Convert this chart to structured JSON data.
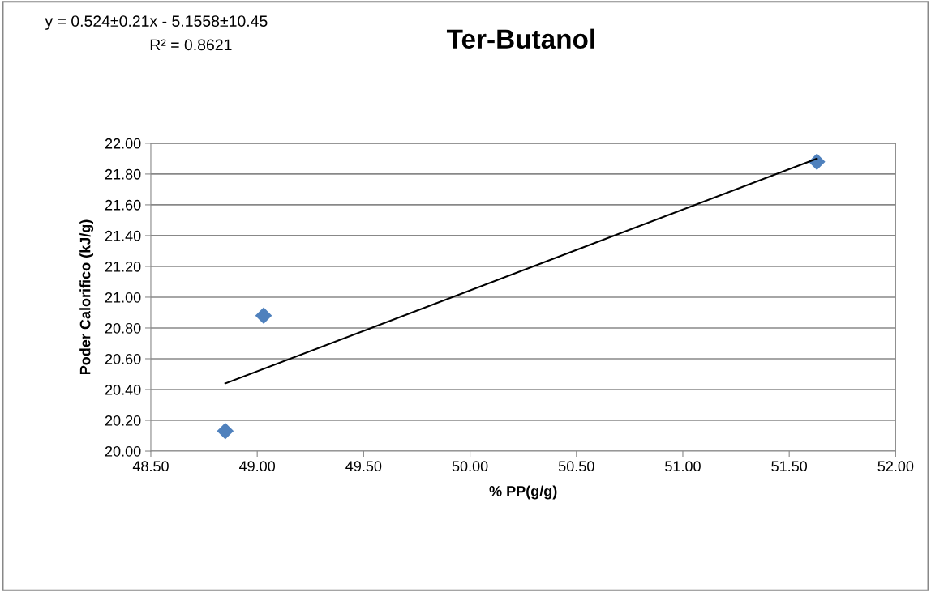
{
  "chart_data": {
    "type": "scatter",
    "title": "Ter-Butanol",
    "xlabel": "% PP(g/g)",
    "ylabel": "Poder Calorifico (kJ/g)",
    "annotations": [
      "y = 0.524±0.21x - 5.1558±10.45",
      "R² = 0.8621"
    ],
    "x": [
      48.85,
      49.03,
      51.63
    ],
    "series": [
      {
        "color": "#4f81bd",
        "marker": "diamond",
        "values": [
          20.13,
          20.88,
          21.88
        ]
      },
      {
        "type": "line",
        "color": "#000000",
        "marker": "none",
        "x": [
          48.85,
          51.63
        ],
        "values": [
          20.44,
          21.9
        ]
      }
    ],
    "xlim": [
      48.5,
      52.0
    ],
    "xticks": [
      {
        "value": 48.5,
        "label": "48.50"
      },
      {
        "value": 49.0,
        "label": "49.00"
      },
      {
        "value": 49.5,
        "label": "49.50"
      },
      {
        "value": 50.0,
        "label": "50.00"
      },
      {
        "value": 50.5,
        "label": "50.50"
      },
      {
        "value": 51.0,
        "label": "51.00"
      },
      {
        "value": 51.5,
        "label": "51.50"
      },
      {
        "value": 52.0,
        "label": "52.00"
      }
    ],
    "ylim": [
      20.0,
      22.0
    ],
    "yticks": [
      {
        "value": 20.0,
        "label": "20.00"
      },
      {
        "value": 20.2,
        "label": "20.20"
      },
      {
        "value": 20.4,
        "label": "20.40"
      },
      {
        "value": 20.6,
        "label": "20.60"
      },
      {
        "value": 20.8,
        "label": "20.80"
      },
      {
        "value": 21.0,
        "label": "21.00"
      },
      {
        "value": 21.2,
        "label": "21.20"
      },
      {
        "value": 21.4,
        "label": "21.40"
      },
      {
        "value": 21.6,
        "label": "21.60"
      },
      {
        "value": 21.8,
        "label": "21.80"
      },
      {
        "value": 22.0,
        "label": "22.00"
      }
    ],
    "grid": "y",
    "legend": false
  }
}
